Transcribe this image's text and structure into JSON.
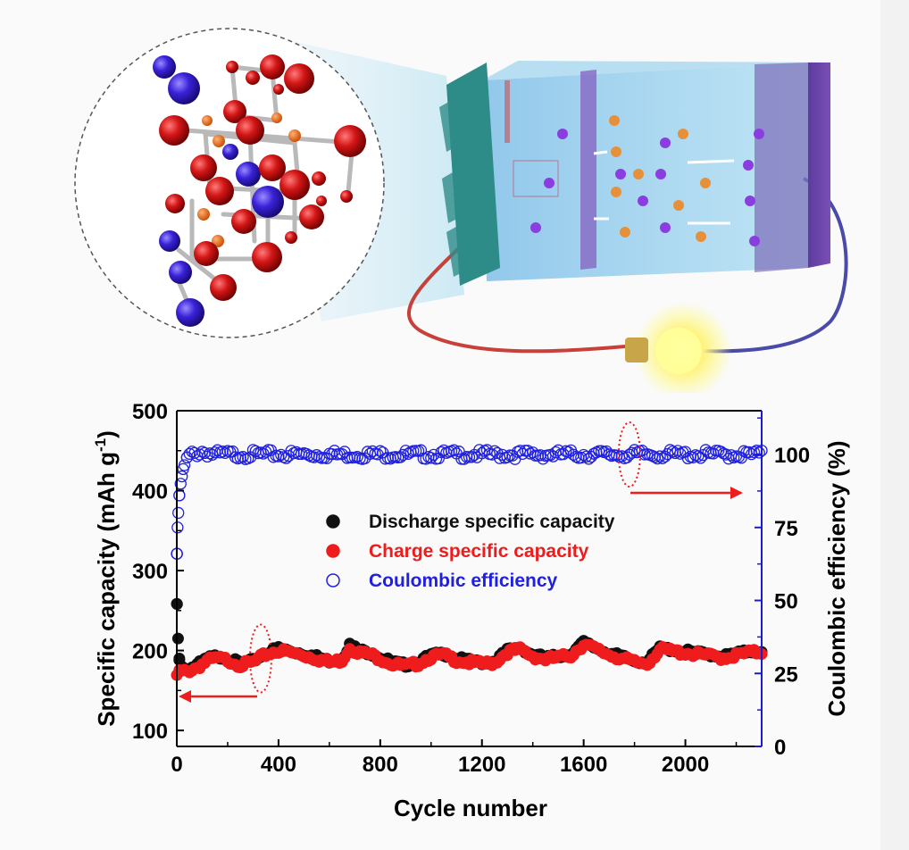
{
  "chart_data": {
    "type": "scatter",
    "xlabel": "Cycle number",
    "ylabel": "Specific capacity (mAh g-1)",
    "ylabel_right": "Coulombic efficiency (%)",
    "ylabel_parts": {
      "main": "Specific capacity (mAh g",
      "sup": "-1",
      "close": ")"
    },
    "xlim": [
      0,
      2300
    ],
    "ylim": [
      80,
      500
    ],
    "ylim_right": [
      0,
      115
    ],
    "xticks": [
      0,
      400,
      800,
      1200,
      1600,
      2000
    ],
    "xtick_labels": [
      "0",
      "400",
      "800",
      "1200",
      "1600",
      "2000"
    ],
    "yticks": [
      100,
      200,
      300,
      400,
      500
    ],
    "ytick_labels": [
      "100",
      "200",
      "300",
      "400",
      "500"
    ],
    "yticks_right": [
      0,
      25,
      50,
      75,
      100
    ],
    "ytick_labels_right": [
      "0",
      "25",
      "50",
      "75",
      "100"
    ],
    "legend_position": "center",
    "legend": [
      {
        "name": "Discharge specific capacity",
        "marker": "filled-circle",
        "color": "#111111"
      },
      {
        "name": "Charge specific capacity",
        "marker": "filled-circle",
        "color": "#ee1c1c"
      },
      {
        "name": "Coulombic efficiency",
        "marker": "open-circle",
        "color": "#2020e0"
      }
    ],
    "series": [
      {
        "name": "Discharge specific capacity",
        "axis": "left",
        "x": [
          1,
          5,
          10,
          20,
          40,
          80,
          120,
          160,
          200,
          250,
          300,
          350,
          400,
          450,
          500,
          550,
          600,
          650,
          680,
          720,
          760,
          800,
          850,
          900,
          950,
          1000,
          1050,
          1100,
          1150,
          1200,
          1250,
          1300,
          1350,
          1400,
          1450,
          1500,
          1550,
          1600,
          1650,
          1700,
          1750,
          1800,
          1850,
          1900,
          1950,
          2000,
          2050,
          2100,
          2150,
          2200,
          2250,
          2290
        ],
        "y": [
          258,
          215,
          190,
          180,
          176,
          182,
          190,
          193,
          190,
          184,
          187,
          197,
          203,
          199,
          196,
          192,
          187,
          190,
          207,
          200,
          197,
          192,
          185,
          182,
          186,
          194,
          196,
          190,
          187,
          185,
          187,
          200,
          203,
          195,
          191,
          193,
          196,
          210,
          203,
          197,
          192,
          187,
          186,
          203,
          201,
          199,
          197,
          195,
          193,
          196,
          199,
          200
        ]
      },
      {
        "name": "Charge specific capacity",
        "axis": "left",
        "x": [
          1,
          5,
          10,
          20,
          40,
          80,
          120,
          160,
          200,
          250,
          300,
          350,
          400,
          450,
          500,
          550,
          600,
          650,
          680,
          720,
          760,
          800,
          850,
          900,
          950,
          1000,
          1050,
          1100,
          1150,
          1200,
          1250,
          1300,
          1350,
          1400,
          1450,
          1500,
          1550,
          1600,
          1650,
          1700,
          1750,
          1800,
          1850,
          1900,
          1950,
          2000,
          2050,
          2100,
          2150,
          2200,
          2250,
          2290
        ],
        "y": [
          168,
          172,
          175,
          174,
          175,
          180,
          188,
          191,
          189,
          183,
          186,
          196,
          201,
          198,
          195,
          191,
          186,
          189,
          205,
          198,
          196,
          191,
          184,
          181,
          185,
          193,
          195,
          189,
          186,
          184,
          186,
          199,
          202,
          194,
          190,
          192,
          195,
          209,
          202,
          196,
          191,
          186,
          185,
          202,
          200,
          198,
          196,
          194,
          192,
          195,
          198,
          199
        ]
      },
      {
        "name": "Coulombic efficiency",
        "axis": "right",
        "x": [
          1,
          3,
          6,
          10,
          15,
          25,
          40,
          60,
          100,
          150,
          200,
          300,
          400,
          500,
          600,
          700,
          800,
          900,
          1000,
          1100,
          1200,
          1300,
          1400,
          1500,
          1600,
          1700,
          1800,
          1900,
          2000,
          2100,
          2200,
          2290
        ],
        "y": [
          66,
          75,
          80,
          86,
          90,
          95,
          99,
          100,
          101,
          100,
          100,
          100,
          100,
          100,
          100,
          100,
          100,
          100,
          100,
          100,
          100,
          100,
          100,
          100,
          100,
          100,
          100,
          100,
          100,
          100,
          100,
          100
        ]
      }
    ],
    "annotations": [
      {
        "type": "arrow",
        "target_axis": "left",
        "direction": "left",
        "color": "#ee1c1c"
      },
      {
        "type": "arrow",
        "target_axis": "right",
        "direction": "right",
        "color": "#ee1c1c"
      }
    ]
  },
  "illustration": {
    "components": [
      "crystal-structure-inset",
      "battery-cell",
      "light-bulb"
    ]
  }
}
